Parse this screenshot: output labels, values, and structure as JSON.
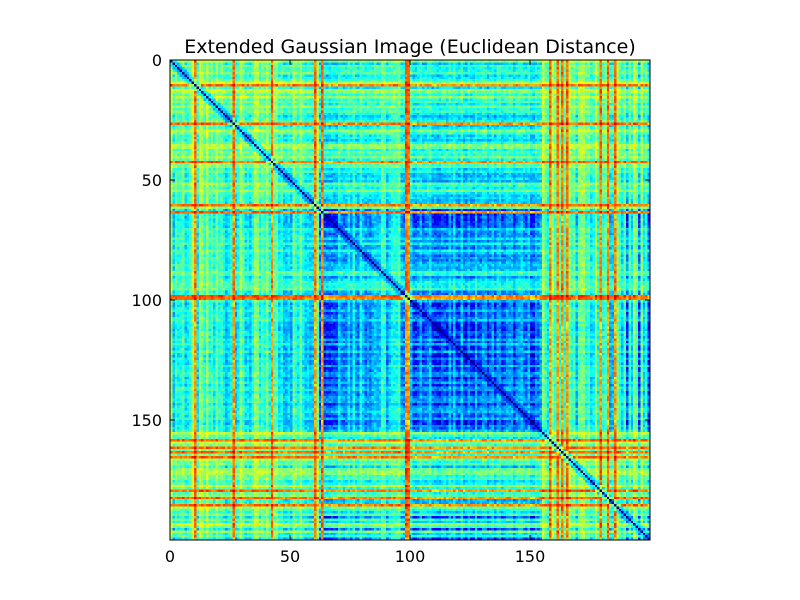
{
  "chart_data": {
    "type": "heatmap",
    "title": "Extended Gaussian Image (Euclidean Distance)",
    "xlabel": "",
    "ylabel": "",
    "matrix_size": 200,
    "xlim": [
      0,
      200
    ],
    "ylim": [
      200,
      0
    ],
    "colormap": "jet",
    "grid": false,
    "x_ticks": [
      0,
      50,
      100,
      150
    ],
    "y_ticks": [
      0,
      50,
      100,
      150
    ],
    "x_tick_labels": [
      "0",
      "50",
      "100",
      "150"
    ],
    "y_tick_labels": [
      "0",
      "50",
      "100",
      "150"
    ],
    "diagonal_value": 0.0,
    "block_features": [
      {
        "start": 0,
        "end": 20,
        "level": 0.45
      },
      {
        "start": 20,
        "end": 62,
        "level": 0.42
      },
      {
        "start": 62,
        "end": 70,
        "level": 0.2
      },
      {
        "start": 70,
        "end": 98,
        "level": 0.35
      },
      {
        "start": 98,
        "end": 100,
        "level": 0.85
      },
      {
        "start": 100,
        "end": 155,
        "level": 0.2
      },
      {
        "start": 155,
        "end": 200,
        "level": 0.45
      }
    ],
    "high_distance_indices": [
      10,
      26,
      42,
      60,
      63,
      99,
      158,
      161,
      163,
      165,
      179,
      182,
      185
    ],
    "low_distance_indices": [
      64,
      65,
      66,
      110,
      115,
      120,
      125,
      190,
      195,
      199
    ]
  }
}
